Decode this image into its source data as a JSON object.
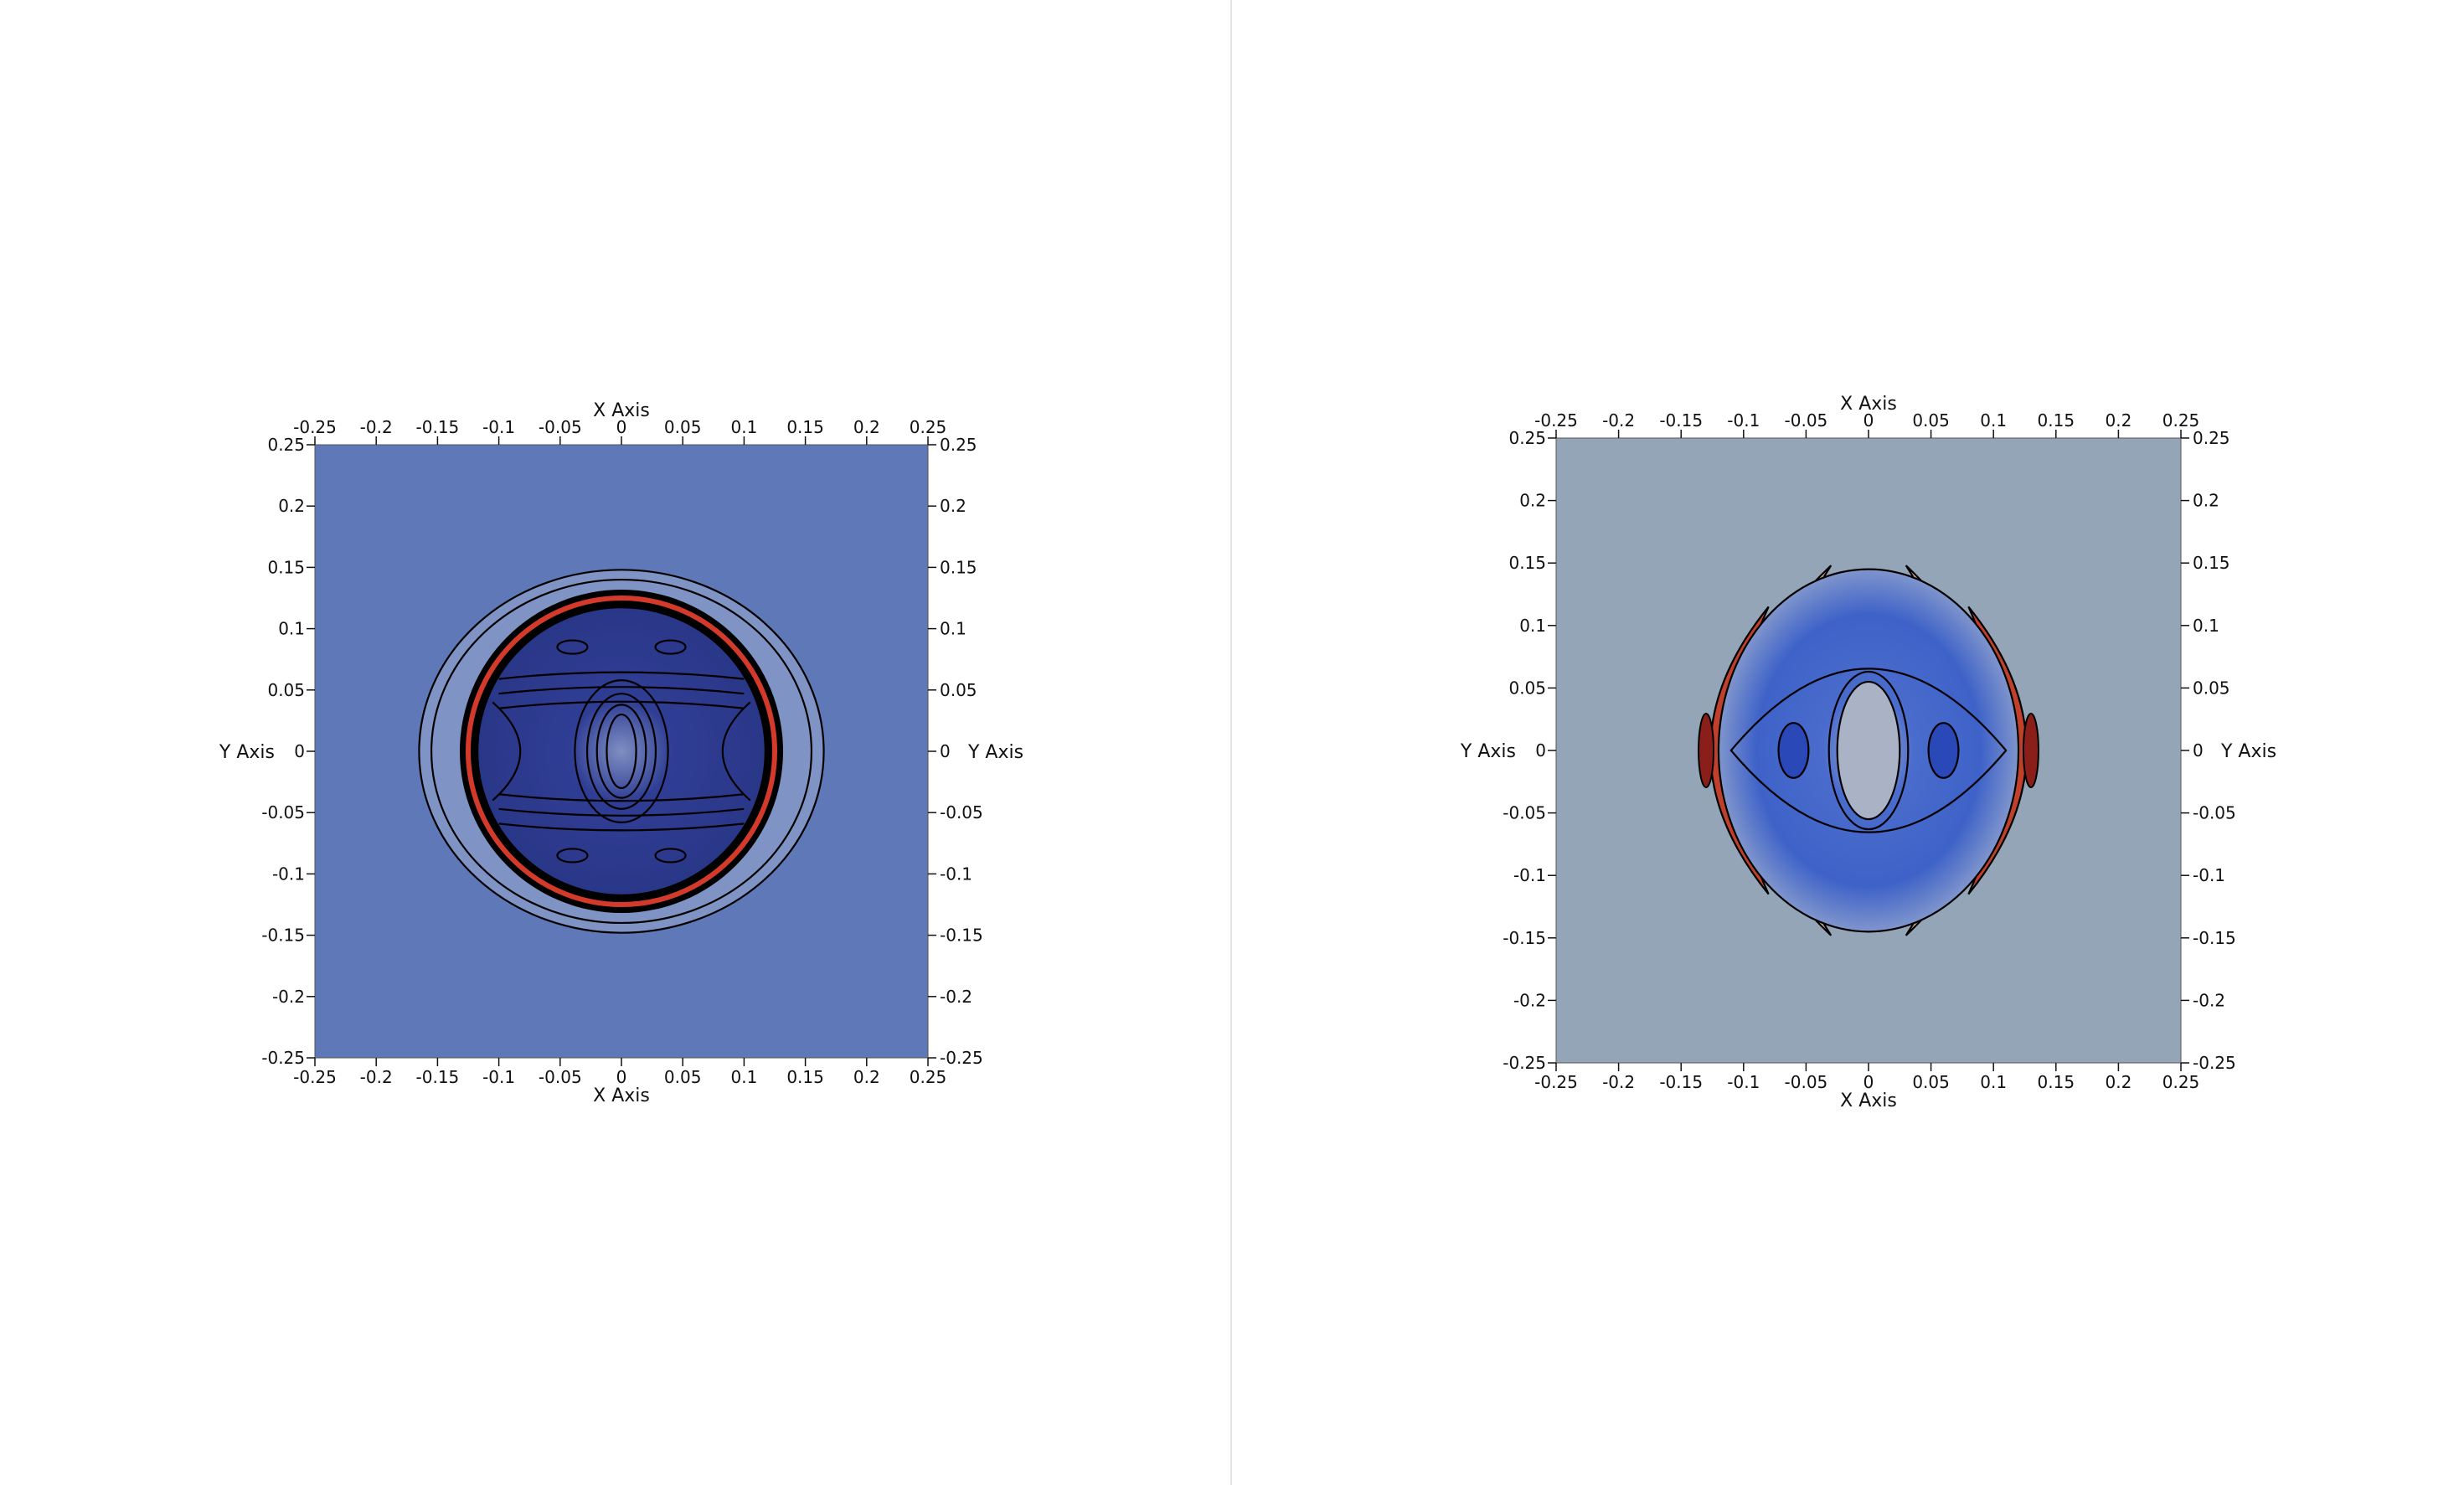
{
  "colors": {
    "background": "#ffffff",
    "divider": "#e4e4e4",
    "ink": "#111111",
    "left_field": "#5f78b8",
    "left_core": "#2f3d94",
    "left_ring": "#d33a2c",
    "right_field": "#94a5b8",
    "right_core": "#3e62c8",
    "right_lobe": "#c0402c",
    "right_lobe_light": "#d9a89a"
  },
  "chart_data": [
    {
      "type": "heatmap",
      "title": "",
      "xlabel": "X Axis",
      "ylabel": "Y Axis",
      "xlim": [
        -0.25,
        0.25
      ],
      "ylim": [
        -0.25,
        0.25
      ],
      "xticks": [
        "-0.25",
        "-0.2",
        "-0.15",
        "-0.1",
        "-0.05",
        "0",
        "0.05",
        "0.1",
        "0.15",
        "0.2",
        "0.25"
      ],
      "yticks": [
        "0.25",
        "0.2",
        "0.15",
        "0.1",
        "0.05",
        "0",
        "-0.05",
        "-0.1",
        "-0.15",
        "-0.2",
        "-0.25"
      ],
      "axes_on": [
        "top",
        "bottom",
        "left",
        "right"
      ],
      "grid": false,
      "colormap": "cool-to-warm",
      "features": {
        "outer_ring_radius": 0.165,
        "thin_ring_radius": 0.155,
        "dense_ring_radius": 0.125,
        "core_radius": 0.118,
        "central_contour_x_radii": [
          0.012,
          0.02,
          0.028,
          0.038
        ],
        "central_contour_y_radii": [
          0.03,
          0.038,
          0.047,
          0.058
        ]
      }
    },
    {
      "type": "heatmap",
      "title": "",
      "xlabel": "X Axis",
      "ylabel": "Y Axis",
      "xlim": [
        -0.25,
        0.25
      ],
      "ylim": [
        -0.25,
        0.25
      ],
      "xticks": [
        "-0.25",
        "-0.2",
        "-0.15",
        "-0.1",
        "-0.05",
        "0",
        "0.05",
        "0.1",
        "0.15",
        "0.2",
        "0.25"
      ],
      "yticks": [
        "0.25",
        "0.2",
        "0.15",
        "0.1",
        "0.05",
        "0",
        "-0.05",
        "-0.1",
        "-0.15",
        "-0.2",
        "-0.25"
      ],
      "axes_on": [
        "top",
        "bottom",
        "left",
        "right"
      ],
      "grid": false,
      "colormap": "cool-to-warm",
      "features": {
        "outer_radius": 0.165,
        "diamond_half_width": 0.11,
        "diamond_half_height": 0.14,
        "central_ellipse_x_radius": 0.025,
        "central_ellipse_y_radius": 0.055,
        "side_eye_center_x": 0.06,
        "side_eye_x_radius": 0.012,
        "side_eye_y_radius": 0.022
      }
    }
  ]
}
